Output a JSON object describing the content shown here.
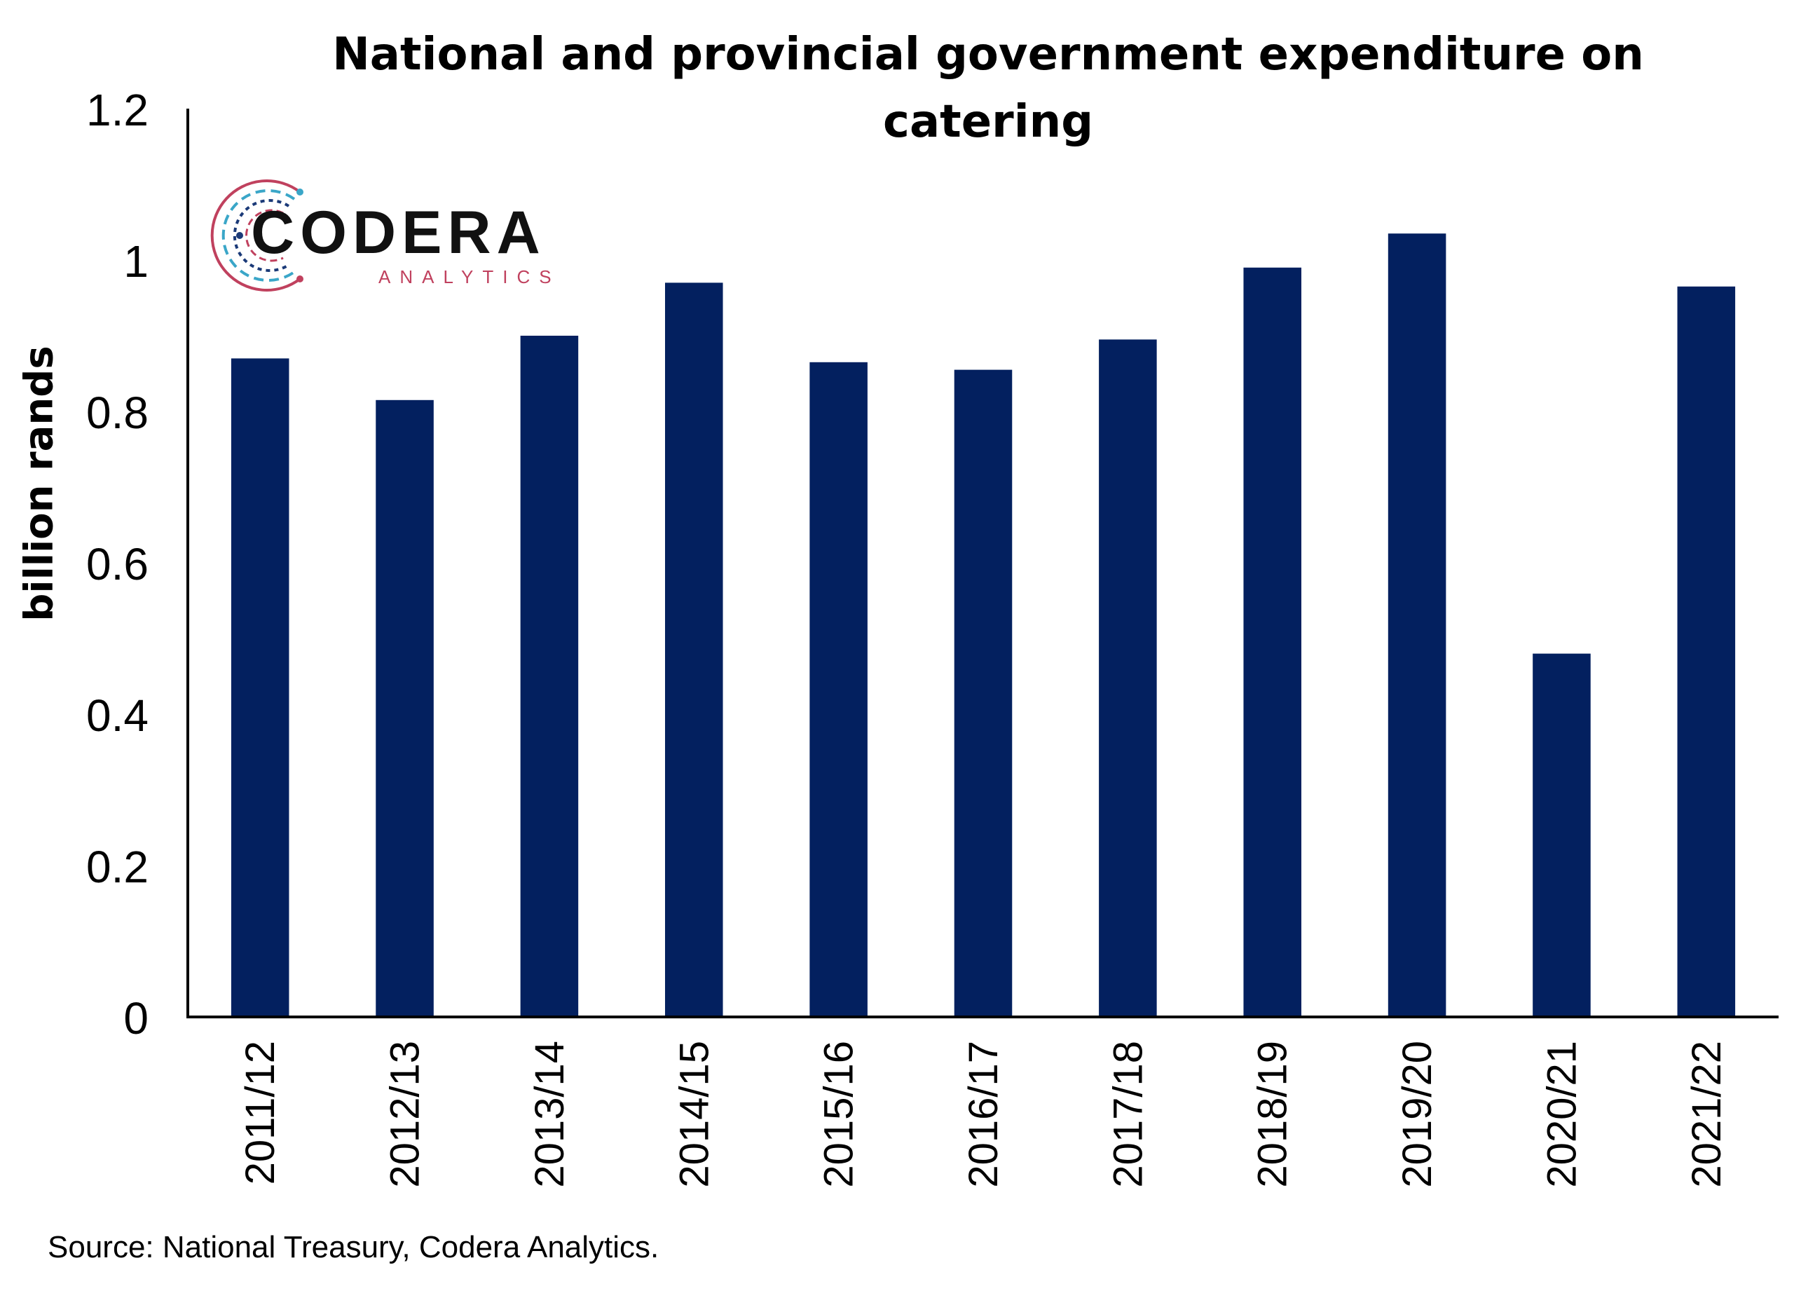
{
  "chart_data": {
    "type": "bar",
    "title_line1": "National and provincial government expenditure on",
    "title_line2": "catering",
    "ylabel": "billion rands",
    "xlabel": "",
    "categories": [
      "2011/12",
      "2012/13",
      "2013/14",
      "2014/15",
      "2015/16",
      "2016/17",
      "2017/18",
      "2018/19",
      "2019/20",
      "2020/21",
      "2021/22"
    ],
    "values": [
      0.87,
      0.815,
      0.9,
      0.97,
      0.865,
      0.855,
      0.895,
      0.99,
      1.035,
      0.48,
      0.965
    ],
    "ylim": [
      0,
      1.2
    ],
    "yticks": [
      "0",
      "0.2",
      "0.4",
      "0.6",
      "0.8",
      "1",
      "1.2"
    ],
    "grid": false,
    "legend": "none",
    "bar_color": "#03205f"
  },
  "source": "Source: National Treasury, Codera Analytics.",
  "logo": {
    "name": "CODERA",
    "subtitle": "ANALYTICS",
    "accent_colors": [
      "#c0415e",
      "#3aa6c8",
      "#1b3a78"
    ]
  }
}
